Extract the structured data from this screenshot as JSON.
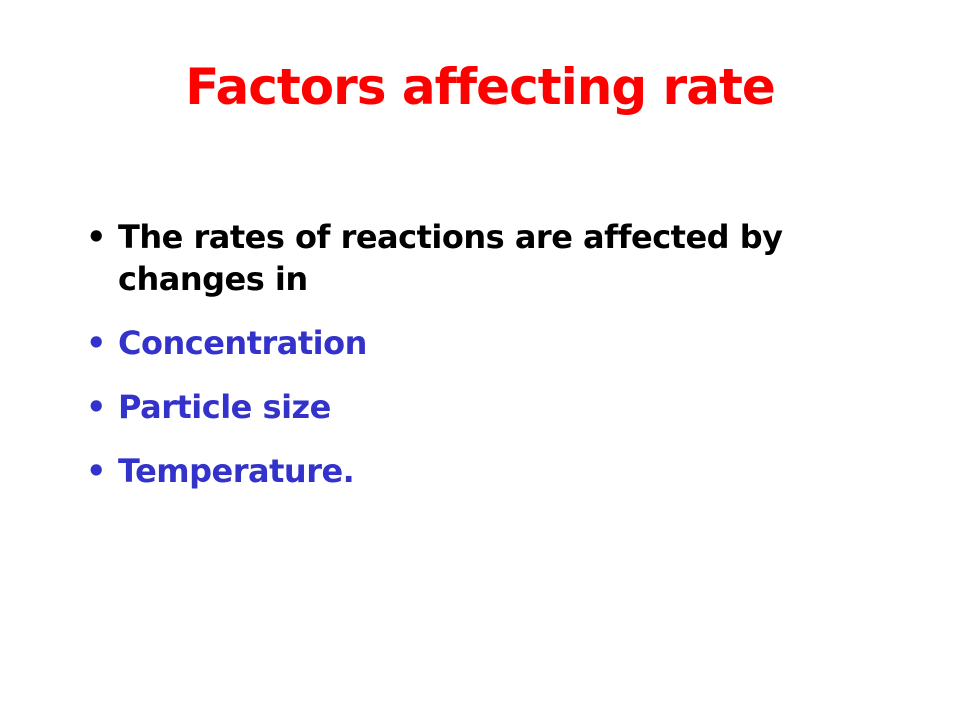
{
  "title": "Factors affecting rate",
  "bullets": [
    {
      "text": "The rates of reactions are affected by changes in",
      "color": "#000000"
    },
    {
      "text": "Concentration",
      "color": "#3333cc"
    },
    {
      "text": "Particle size",
      "color": "#3333cc"
    },
    {
      "text": "Temperature.",
      "color": "#3333cc"
    }
  ]
}
